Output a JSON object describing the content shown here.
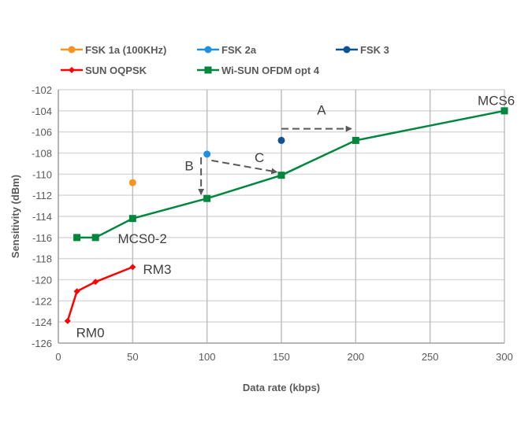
{
  "chart_data": {
    "type": "line",
    "title": "",
    "xlabel": "Data rate (kbps)",
    "ylabel": "Sensitivity (dBm)",
    "xlim": [
      0,
      300
    ],
    "ylim": [
      -126,
      -102
    ],
    "xticks": [
      0,
      50,
      100,
      150,
      200,
      250,
      300
    ],
    "yticks": [
      -102,
      -104,
      -106,
      -108,
      -110,
      -112,
      -114,
      -116,
      -118,
      -120,
      -122,
      -124,
      -126
    ],
    "grid": true,
    "legend_position": "top",
    "series": [
      {
        "name": "FSK 1a (100KHz)",
        "color": "#f7941d",
        "marker": "circle",
        "points": [
          [
            50,
            -110.8
          ]
        ]
      },
      {
        "name": "FSK 2a",
        "color": "#1f8fe0",
        "marker": "circle",
        "points": [
          [
            100,
            -108.1
          ]
        ]
      },
      {
        "name": "FSK 3",
        "color": "#0b5394",
        "marker": "circle",
        "points": [
          [
            150,
            -106.8
          ]
        ]
      },
      {
        "name": "SUN OQPSK",
        "color": "#ff0000",
        "marker": "diamond",
        "points": [
          [
            6.25,
            -123.9
          ],
          [
            12.5,
            -121.1
          ],
          [
            25,
            -120.2
          ],
          [
            50,
            -118.8
          ]
        ]
      },
      {
        "name": "Wi-SUN OFDM opt 4",
        "color": "#00873e",
        "marker": "square",
        "points": [
          [
            12.5,
            -116
          ],
          [
            25,
            -116
          ],
          [
            50,
            -114.2
          ],
          [
            100,
            -112.3
          ],
          [
            150,
            -110.1
          ],
          [
            200,
            -106.8
          ],
          [
            300,
            -104
          ]
        ]
      }
    ],
    "annotations": [
      {
        "text": "MCS6",
        "x": 282,
        "y": -103
      },
      {
        "text": "MCS0-2",
        "x": 40,
        "y": -116.1
      },
      {
        "text": "RM3",
        "x": 57,
        "y": -119
      },
      {
        "text": "RM0",
        "x": 12,
        "y": -125
      },
      {
        "text": "A",
        "x": 174,
        "y": -103.9
      },
      {
        "text": "B",
        "x": 85,
        "y": -109.2
      },
      {
        "text": "C",
        "x": 132,
        "y": -108.4
      }
    ],
    "arrows": [
      {
        "label": "A",
        "from": [
          150,
          -105.7
        ],
        "to": [
          197,
          -105.7
        ]
      },
      {
        "label": "B",
        "from": [
          96,
          -108.4
        ],
        "to": [
          96,
          -111.9
        ]
      },
      {
        "label": "C",
        "from": [
          103,
          -108.7
        ],
        "to": [
          147,
          -109.8
        ]
      }
    ]
  }
}
